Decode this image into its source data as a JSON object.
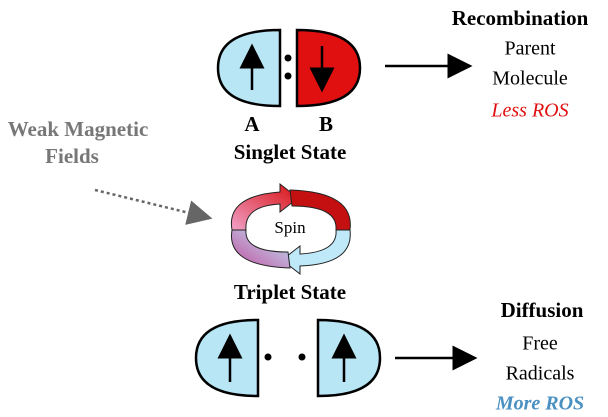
{
  "recombination": {
    "title": "Recombination",
    "line1": "Parent",
    "line2": "Molecule",
    "note": "Less ROS"
  },
  "diffusion": {
    "title": "Diffusion",
    "line1": "Free",
    "line2": "Radicals",
    "note": "More ROS"
  },
  "field_label": [
    "Weak Magnetic",
    "Fields"
  ],
  "radical_labels": [
    "A",
    "B"
  ],
  "singlet_label": "Singlet State",
  "spin_label": "Spin",
  "triplet_label": "Triplet State"
}
